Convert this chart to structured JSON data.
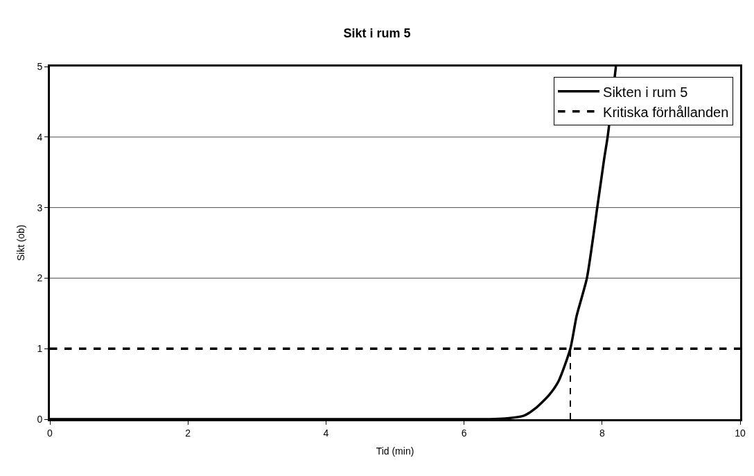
{
  "chart_data": {
    "type": "line",
    "title": "Sikt i rum 5",
    "xlabel": "Tid (min)",
    "ylabel": "Sikt (ob)",
    "xlim": [
      0,
      10
    ],
    "xticks": [
      0,
      2,
      4,
      6,
      8,
      10
    ],
    "ylim": [
      0,
      5
    ],
    "yticks": [
      0,
      1,
      2,
      3,
      4,
      5
    ],
    "grid": "y",
    "legend": "top right",
    "marker": "none",
    "series": [
      {
        "name": "Sikten i rum 5",
        "color": "#000000",
        "line_style": "solid",
        "x": [
          0,
          6.37,
          6.6,
          6.87,
          7.03,
          7.23,
          7.37,
          7.54,
          7.63,
          7.78,
          7.93,
          8.03,
          8.08,
          8.2
        ],
        "values": [
          0,
          0,
          0.01,
          0.05,
          0.15,
          0.34,
          0.54,
          1,
          1.46,
          2,
          3,
          3.69,
          4,
          5
        ]
      },
      {
        "name": "Kritiska förhållanden",
        "color": "#000000",
        "line_style": "dashed",
        "x": [
          0,
          10
        ],
        "values": [
          1,
          1
        ]
      },
      {
        "color": "#000000",
        "line_style": "dotted",
        "x": [
          7.54,
          7.54
        ],
        "values": [
          0,
          1
        ]
      }
    ]
  }
}
